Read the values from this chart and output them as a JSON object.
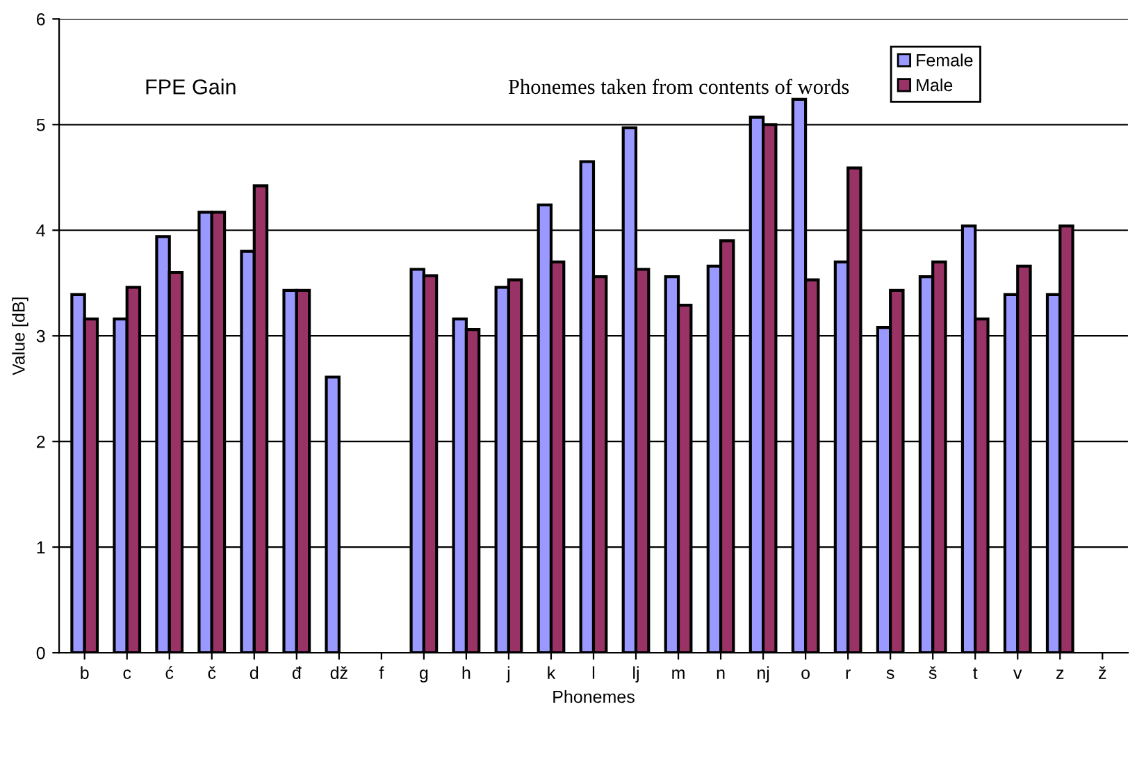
{
  "chart_data": {
    "type": "bar",
    "annotations": [
      "FPE Gain",
      "Phonemes taken from contents of words"
    ],
    "xlabel": "Phonemes",
    "ylabel": "Value [dB]",
    "categories": [
      "b",
      "c",
      "ć",
      "č",
      "d",
      "đ",
      "dž",
      "f",
      "g",
      "h",
      "j",
      "k",
      "l",
      "lj",
      "m",
      "n",
      "nj",
      "o",
      "r",
      "s",
      "š",
      "t",
      "v",
      "z",
      "ž"
    ],
    "series": [
      {
        "name": "Female",
        "color": "#9999ff",
        "values": [
          3.39,
          3.16,
          3.94,
          4.17,
          3.8,
          3.43,
          2.61,
          null,
          3.63,
          3.16,
          3.46,
          4.24,
          4.65,
          4.97,
          3.56,
          3.66,
          5.07,
          5.24,
          3.7,
          3.08,
          3.56,
          4.04,
          3.39,
          3.39,
          null
        ]
      },
      {
        "name": "Male",
        "color": "#993366",
        "values": [
          3.16,
          3.46,
          3.6,
          4.17,
          4.42,
          3.43,
          null,
          null,
          3.57,
          3.06,
          3.53,
          3.7,
          3.56,
          3.63,
          3.29,
          3.9,
          5.0,
          3.53,
          4.59,
          3.43,
          3.7,
          3.16,
          3.66,
          4.04,
          null
        ]
      }
    ],
    "ylim": [
      0,
      6
    ],
    "yticks": [
      0,
      1,
      2,
      3,
      4,
      5,
      6
    ],
    "grid": "y",
    "legend": "top right"
  }
}
